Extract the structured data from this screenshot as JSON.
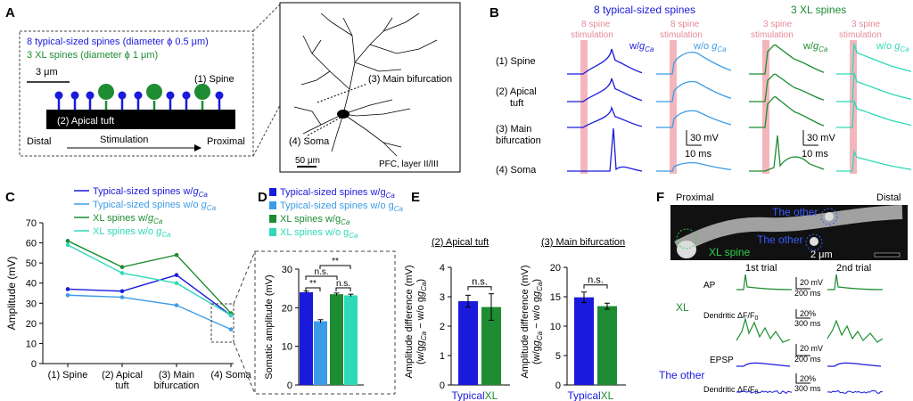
{
  "colors": {
    "typical": "#1a1adc",
    "typical_no": "#3b9be6",
    "xl": "#1e8c32",
    "xl_no": "#2ed9b8",
    "stim": "#f4b6bd",
    "stim_text": "#e58a96"
  },
  "panelA": {
    "letter": "A",
    "legend_typical": "8 typical-sized spines (diameter ϕ 0.5 μm)",
    "legend_xl": "3 XL spines (diameter ϕ 1 μm)",
    "scale": "3 μm",
    "spine_label": "(1) Spine",
    "tuft_label": "(2) Apical tuft",
    "distal": "Distal",
    "stimulation": "Stimulation",
    "proximal": "Proximal",
    "main_bif": "(3) Main bifurcation",
    "soma": "(4) Soma",
    "scale_neuron": "50 μm",
    "region": "PFC, layer II/III"
  },
  "panelB": {
    "letter": "B",
    "title_typical": "8 typical-sized spines",
    "title_xl": "3 XL spines",
    "stim_typical": [
      "8 spine",
      "stimulation"
    ],
    "stim_xl": [
      "3 spine",
      "stimulation"
    ],
    "w_label": "w/",
    "wo_label": "w/o ",
    "gca": "g",
    "gca_sub": "Ca",
    "rows": [
      "(1) Spine",
      "(2) Apical",
      "tuft",
      "(3) Main",
      "bifurcation",
      "(4) Soma"
    ],
    "scale_mv": "30 mV",
    "scale_ms": "10 ms"
  },
  "chart_data": [
    {
      "type": "line",
      "panel": "C",
      "categories": [
        "(1) Spine",
        "(2) Apical tuft",
        "(3) Main bifurcation",
        "(4) Soma"
      ],
      "ylabel": "Amplitude (mV)",
      "ylim": [
        0,
        70
      ],
      "yticks": [
        0,
        10,
        20,
        30,
        40,
        50,
        60,
        70
      ],
      "series": [
        {
          "name": "Typical-sized spines w/gCa",
          "values": [
            37,
            36,
            44,
            24
          ]
        },
        {
          "name": "Typical-sized spines w/o gCa",
          "values": [
            34,
            33,
            29,
            17
          ]
        },
        {
          "name": "XL spines w/gCa",
          "values": [
            61,
            48,
            54,
            25
          ]
        },
        {
          "name": "XL spines w/o gCa",
          "values": [
            59,
            45,
            40,
            24
          ]
        }
      ]
    },
    {
      "type": "bar",
      "panel": "D",
      "categories": [
        "Typical-sized spines w/gCa",
        "Typical-sized spines w/o gCa",
        "XL spines w/gCa",
        "XL spines w/o gCa"
      ],
      "values": [
        24,
        16.5,
        23.5,
        23.2
      ],
      "errors": [
        0.3,
        0.4,
        0.3,
        0.3
      ],
      "ylabel": "Somatic amplitude (mV)",
      "ylim": [
        0,
        30
      ],
      "yticks": [
        0,
        10,
        20,
        30
      ],
      "significance": [
        "**",
        "n.s.",
        "n.s.",
        "**"
      ]
    },
    {
      "type": "bar",
      "panel": "E1",
      "title": "(2) Apical tuft",
      "categories": [
        "Typical",
        "XL"
      ],
      "values": [
        2.85,
        2.65
      ],
      "errors": [
        0.2,
        0.45
      ],
      "ylim": [
        0,
        4
      ],
      "yticks": [
        0,
        1,
        2,
        3,
        4
      ],
      "significance": "n.s."
    },
    {
      "type": "bar",
      "panel": "E2",
      "title": "(3) Main bifurcation",
      "categories": [
        "Typical",
        "XL"
      ],
      "values": [
        14.9,
        13.4
      ],
      "errors": [
        0.9,
        0.5
      ],
      "ylim": [
        0,
        20
      ],
      "yticks": [
        0,
        5,
        10,
        15,
        20
      ],
      "significance": "n.s."
    }
  ],
  "panelC": {
    "letter": "C"
  },
  "panelD": {
    "letter": "D",
    "legend": [
      "Typical-sized spines w/g",
      "Typical-sized spines w/o g",
      "XL spines w/g",
      "XL spines w/o g"
    ]
  },
  "panelE": {
    "letter": "E",
    "ylabel_line1": "Amplitude difference (mV)",
    "ylabel_line2": "(w/g",
    "ylabel_mid": " − w/o g",
    "ylabel_end": ")"
  },
  "panelF": {
    "letter": "F",
    "proximal": "Proximal",
    "distal": "Distal",
    "the_other": "The other",
    "xl_spine": "XL spine",
    "scale": "2 μm",
    "trial1": "1st trial",
    "trial2": "2nd trial",
    "ap": "AP",
    "epsp": "EPSP",
    "xl": "XL",
    "the_other_row": "The other",
    "dendritic": "Dendritic ΔF/F",
    "f0_sub": "0",
    "scale_20mv": "20 mV",
    "scale_200ms": "200 ms",
    "scale_20pct": "20%",
    "scale_300ms": "300 ms"
  }
}
